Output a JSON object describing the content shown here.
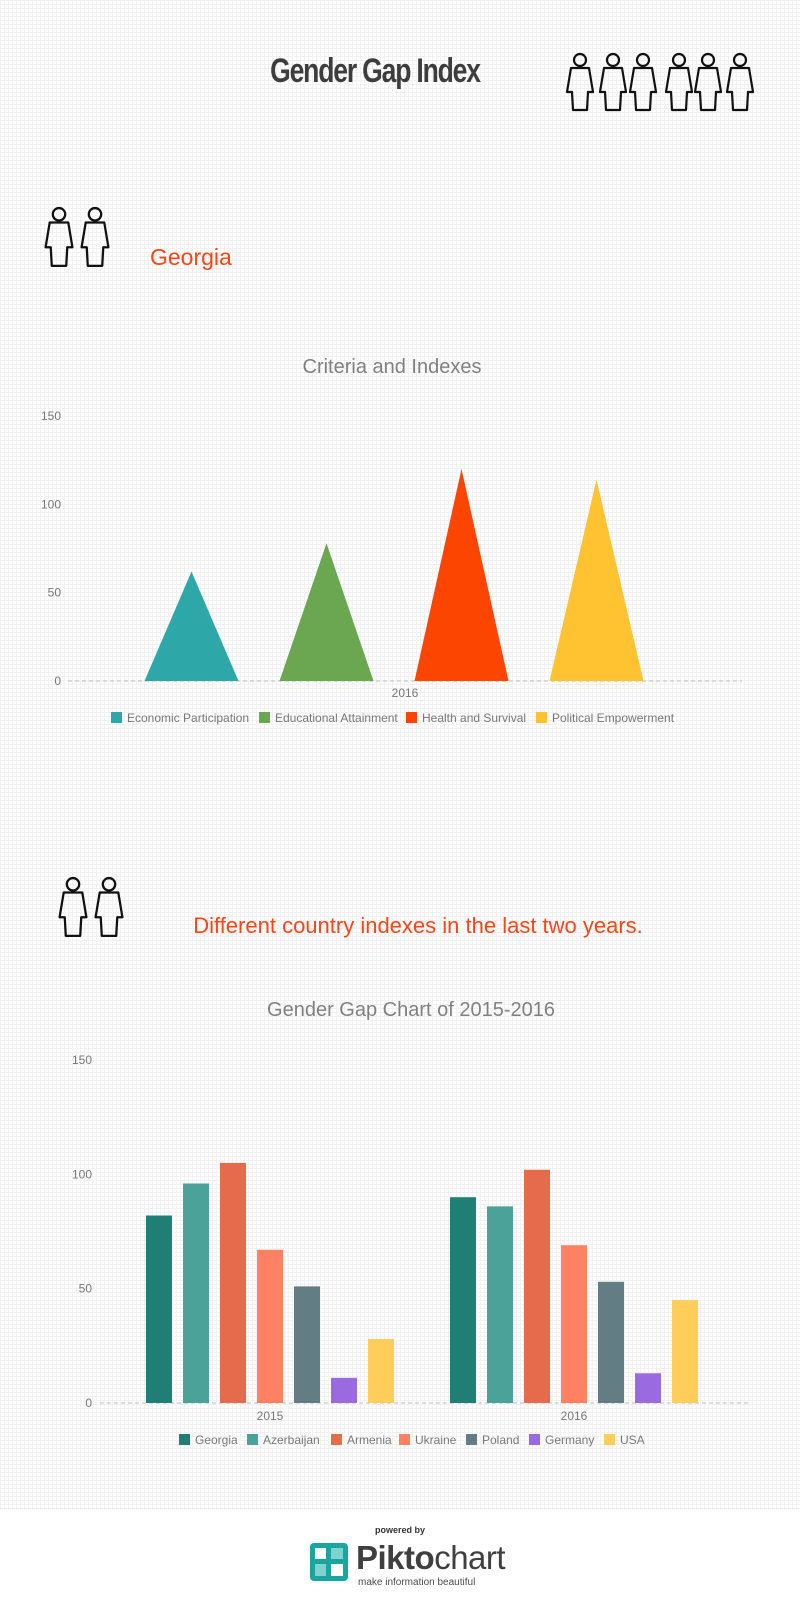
{
  "header": {
    "title": "Gender Gap Index"
  },
  "sections": {
    "georgia_heading": "Georgia",
    "countries_heading": "Different country indexes in the last two years."
  },
  "colors": {
    "accent": "#fa4616",
    "title_gray": "#3d3d3d",
    "chart_text": "#777777"
  },
  "chart_data": [
    {
      "type": "bar",
      "mark": "triangle",
      "title": "Criteria and Indexes",
      "categories": [
        "2016"
      ],
      "series": [
        {
          "name": "Economic Participation",
          "values": [
            62
          ],
          "color": "#2ea7a8"
        },
        {
          "name": "Educational Attainment",
          "values": [
            78
          ],
          "color": "#6ba750"
        },
        {
          "name": "Health and Survival",
          "values": [
            120
          ],
          "color": "#fb4500"
        },
        {
          "name": "Political Empowerment",
          "values": [
            114
          ],
          "color": "#ffc231"
        }
      ],
      "ylim": [
        0,
        150
      ],
      "yticks": [
        "0",
        "50",
        "100",
        "150"
      ],
      "grid": false,
      "legend_position": "bottom"
    },
    {
      "type": "bar",
      "title": "Gender Gap Chart of 2015-2016",
      "categories": [
        "2015",
        "2016"
      ],
      "series": [
        {
          "name": "Georgia",
          "values": [
            82,
            90
          ],
          "color": "#217e74"
        },
        {
          "name": "Azerbaijan",
          "values": [
            96,
            86
          ],
          "color": "#4aa299"
        },
        {
          "name": "Armenia",
          "values": [
            105,
            102
          ],
          "color": "#e66b4d"
        },
        {
          "name": "Ukraine",
          "values": [
            67,
            69
          ],
          "color": "#ff8163"
        },
        {
          "name": "Poland",
          "values": [
            51,
            53
          ],
          "color": "#627d83"
        },
        {
          "name": "Germany",
          "values": [
            11,
            13
          ],
          "color": "#9a6ae0"
        },
        {
          "name": "USA",
          "values": [
            28,
            45
          ],
          "color": "#ffcd59"
        }
      ],
      "ylim": [
        0,
        150
      ],
      "yticks": [
        "0",
        "50",
        "100",
        "150"
      ],
      "grid": false,
      "legend_position": "bottom"
    }
  ],
  "footer": {
    "powered_by": "powered by",
    "brand_bold": "Pikto",
    "brand_light": "chart",
    "tagline": "make information beautiful",
    "logo_icon": "piktochart-logo-icon"
  }
}
